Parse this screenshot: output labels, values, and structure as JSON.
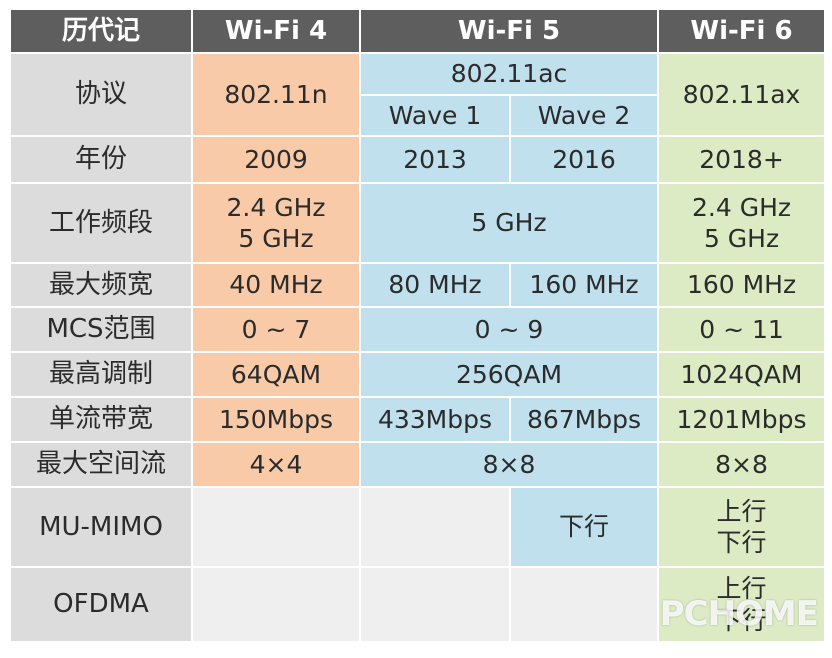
{
  "header": {
    "corner": "历代记",
    "wifi4": "Wi-Fi 4",
    "wifi5": "Wi-Fi 5",
    "wifi6": "Wi-Fi 6"
  },
  "rows": {
    "protocol": {
      "label": "协议",
      "wifi4": "802.11n",
      "wifi5": "802.11ac",
      "wifi5_wave1": "Wave 1",
      "wifi5_wave2": "Wave 2",
      "wifi6": "802.11ax"
    },
    "year": {
      "label": "年份",
      "wifi4": "2009",
      "wifi5_wave1": "2013",
      "wifi5_wave2": "2016",
      "wifi6": "2018+"
    },
    "band": {
      "label": "工作频段",
      "wifi4_line1": "2.4 GHz",
      "wifi4_line2": "5 GHz",
      "wifi5": "5 GHz",
      "wifi6_line1": "2.4 GHz",
      "wifi6_line2": "5 GHz"
    },
    "bandwidth": {
      "label": "最大频宽",
      "wifi4": "40 MHz",
      "wifi5_wave1": "80 MHz",
      "wifi5_wave2": "160 MHz",
      "wifi6": "160 MHz"
    },
    "mcs": {
      "label": "MCS范围",
      "wifi4": "0 ~ 7",
      "wifi5": "0 ~ 9",
      "wifi6": "0 ~ 11"
    },
    "modulation": {
      "label": "最高调制",
      "wifi4": "64QAM",
      "wifi5": "256QAM",
      "wifi6": "1024QAM"
    },
    "stream_bw": {
      "label": "单流带宽",
      "wifi4": "150Mbps",
      "wifi5_wave1": "433Mbps",
      "wifi5_wave2": "867Mbps",
      "wifi6": "1201Mbps"
    },
    "spatial": {
      "label": "最大空间流",
      "wifi4": "4×4",
      "wifi5": "8×8",
      "wifi6": "8×8"
    },
    "mumimo": {
      "label": "MU-MIMO",
      "wifi5_wave2": "下行",
      "wifi6_line1": "上行",
      "wifi6_line2": "下行"
    },
    "ofdma": {
      "label": "OFDMA",
      "wifi6_line1": "上行",
      "wifi6_line2": "下行"
    }
  },
  "watermark": "PCHOME",
  "colors": {
    "header": "#5e5e5e",
    "label": "#dcdcdc",
    "wifi4": "#f9caa7",
    "wifi5": "#bfe0ec",
    "wifi6": "#dcebc4",
    "empty": "#efefef"
  }
}
